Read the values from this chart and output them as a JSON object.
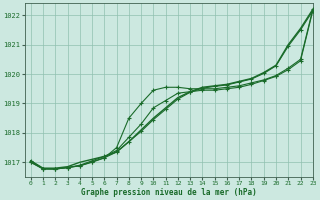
{
  "title": "Graphe pression niveau de la mer (hPa)",
  "background_color": "#cce8e0",
  "grid_color": "#90c0b0",
  "line_color": "#1a6b2a",
  "xlim": [
    -0.5,
    23
  ],
  "ylim": [
    1016.5,
    1022.4
  ],
  "yticks": [
    1017,
    1018,
    1019,
    1020,
    1021,
    1022
  ],
  "xticks": [
    0,
    1,
    2,
    3,
    4,
    5,
    6,
    7,
    8,
    9,
    10,
    11,
    12,
    13,
    14,
    15,
    16,
    17,
    18,
    19,
    20,
    21,
    22,
    23
  ],
  "series": [
    {
      "x": [
        0,
        1,
        2,
        3,
        4,
        5,
        6,
        7,
        8,
        9,
        10,
        11,
        12,
        13,
        14,
        15,
        16,
        17,
        18,
        19,
        20,
        21,
        22,
        23
      ],
      "y": [
        1017.05,
        1016.8,
        1016.8,
        1016.85,
        1017.0,
        1017.1,
        1017.2,
        1017.35,
        1017.7,
        1018.1,
        1018.5,
        1018.85,
        1019.2,
        1019.4,
        1019.55,
        1019.6,
        1019.65,
        1019.75,
        1019.85,
        1020.05,
        1020.3,
        1021.0,
        1021.55,
        1022.2
      ],
      "with_markers": false,
      "linewidth": 1.0
    },
    {
      "x": [
        0,
        1,
        2,
        3,
        4,
        5,
        6,
        7,
        8,
        9,
        10,
        11,
        12,
        13,
        14,
        15,
        16,
        17,
        18,
        19,
        20,
        21,
        22,
        23
      ],
      "y": [
        1017.05,
        1016.78,
        1016.77,
        1016.82,
        1016.88,
        1017.0,
        1017.15,
        1017.5,
        1018.5,
        1019.0,
        1019.45,
        1019.55,
        1019.55,
        1019.5,
        1019.5,
        1019.5,
        1019.55,
        1019.6,
        1019.7,
        1019.8,
        1019.95,
        1020.2,
        1020.5,
        1022.2
      ],
      "with_markers": true,
      "linewidth": 0.8
    },
    {
      "x": [
        0,
        1,
        2,
        3,
        4,
        5,
        6,
        7,
        8,
        9,
        10,
        11,
        12,
        13,
        14,
        15,
        16,
        17,
        18,
        19,
        20,
        21,
        22,
        23
      ],
      "y": [
        1017.0,
        1016.78,
        1016.77,
        1016.82,
        1016.9,
        1017.05,
        1017.2,
        1017.4,
        1017.85,
        1018.3,
        1018.85,
        1019.1,
        1019.35,
        1019.4,
        1019.45,
        1019.45,
        1019.5,
        1019.55,
        1019.65,
        1019.78,
        1019.92,
        1020.15,
        1020.45,
        1022.15
      ],
      "with_markers": true,
      "linewidth": 0.8
    },
    {
      "x": [
        0,
        1,
        2,
        3,
        4,
        5,
        6,
        7,
        8,
        9,
        10,
        11,
        12,
        13,
        14,
        15,
        16,
        17,
        18,
        19,
        20,
        21,
        22,
        23
      ],
      "y": [
        1017.0,
        1016.77,
        1016.77,
        1016.82,
        1016.88,
        1017.02,
        1017.15,
        1017.35,
        1017.7,
        1018.05,
        1018.45,
        1018.8,
        1019.15,
        1019.38,
        1019.52,
        1019.58,
        1019.63,
        1019.73,
        1019.83,
        1020.02,
        1020.28,
        1020.95,
        1021.5,
        1022.15
      ],
      "with_markers": true,
      "linewidth": 0.8
    }
  ]
}
